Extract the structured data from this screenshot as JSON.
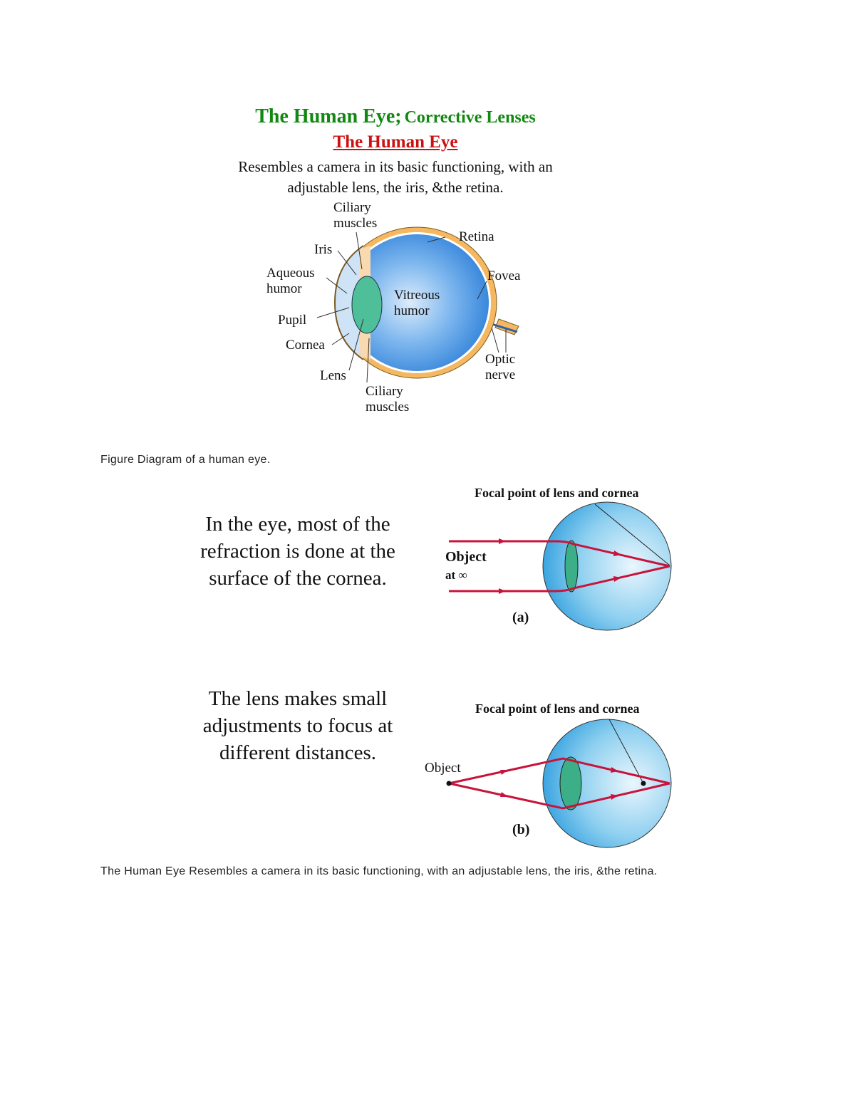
{
  "header": {
    "title_main": "The Human Eye;",
    "title_sub": "Corrective Lenses",
    "section_title": "The Human Eye",
    "intro_line1": "Resembles a camera in its basic functioning, with an",
    "intro_line2": "adjustable lens, the iris, &the retina."
  },
  "eye_diagram": {
    "labels": {
      "ciliary_top_1": "Ciliary",
      "ciliary_top_2": "muscles",
      "retina": "Retina",
      "iris": "Iris",
      "aqueous_1": "Aqueous",
      "aqueous_2": "humor",
      "fovea": "Fovea",
      "vitreous_1": "Vitreous",
      "vitreous_2": "humor",
      "pupil": "Pupil",
      "cornea": "Cornea",
      "optic_1": "Optic",
      "optic_2": "nerve",
      "lens": "Lens",
      "ciliary_bottom_1": "Ciliary",
      "ciliary_bottom_2": "muscles"
    },
    "colors": {
      "sclera": "#f5b860",
      "vitreous": "#3b8fe0",
      "lens": "#4fbf9a"
    }
  },
  "caption1": "Figure Diagram of a human eye.",
  "panel_a": {
    "text_line1": "In the eye, most of the",
    "text_line2": "refraction is done at the",
    "text_line3": "surface of the cornea.",
    "focal_label": "Focal point of lens and cornea",
    "object_1": "Object",
    "object_2": "at ∞",
    "tag": "(a)"
  },
  "panel_b": {
    "text_line1": "The lens makes small",
    "text_line2": "adjustments to focus at",
    "text_line3": "different distances.",
    "focal_label": "Focal point of lens and cornea",
    "object": "Object",
    "tag": "(b)"
  },
  "caption2": "The Human Eye Resembles a camera in its basic functioning, with an adjustable lens, the iris, &the retina.",
  "colors": {
    "title_green": "#118811",
    "section_red": "#cc1111",
    "ray_red": "#c8143c"
  }
}
